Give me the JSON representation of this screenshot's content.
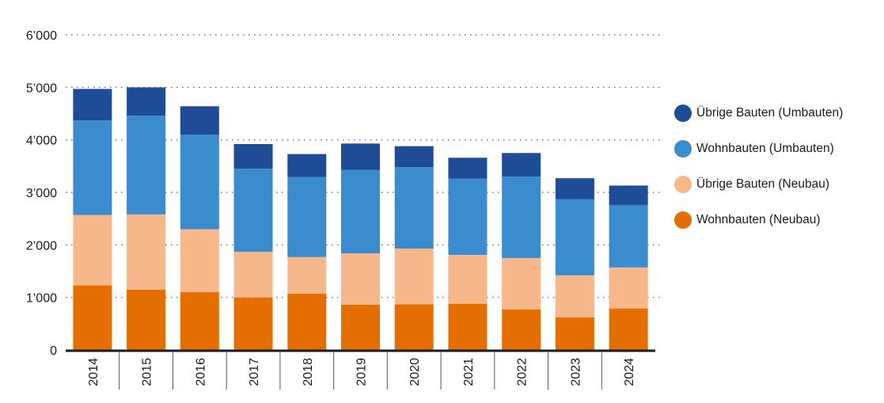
{
  "chart_data": {
    "type": "bar",
    "stacked": true,
    "categories": [
      "2014",
      "2015",
      "2016",
      "2017",
      "2018",
      "2019",
      "2020",
      "2021",
      "2022",
      "2023",
      "2024"
    ],
    "series": [
      {
        "name": "Wohnbauten (Neubau)",
        "color": "#E46F00",
        "values": [
          1230,
          1150,
          1100,
          1000,
          1070,
          860,
          870,
          880,
          770,
          620,
          790
        ]
      },
      {
        "name": "Übrige Bauten (Neubau)",
        "color": "#F6B88A",
        "values": [
          1340,
          1430,
          1200,
          870,
          700,
          980,
          1060,
          930,
          980,
          800,
          780
        ]
      },
      {
        "name": "Wohnbauten (Umbauten)",
        "color": "#3A8CCF",
        "values": [
          1800,
          1880,
          1800,
          1580,
          1520,
          1590,
          1550,
          1450,
          1550,
          1450,
          1190
        ]
      },
      {
        "name": "Übrige Bauten (Umbauten)",
        "color": "#1E4C97",
        "values": [
          600,
          540,
          540,
          470,
          440,
          500,
          400,
          400,
          450,
          400,
          370
        ]
      }
    ],
    "ylim": [
      0,
      6000
    ],
    "yticks": [
      0,
      1000,
      2000,
      3000,
      4000,
      5000,
      6000
    ],
    "ytick_labels": [
      "0",
      "1’000",
      "2’000",
      "3’000",
      "4’000",
      "5’000",
      "6’000"
    ],
    "grid": true,
    "legend_position": "right",
    "title": "",
    "xlabel": "",
    "ylabel": ""
  }
}
